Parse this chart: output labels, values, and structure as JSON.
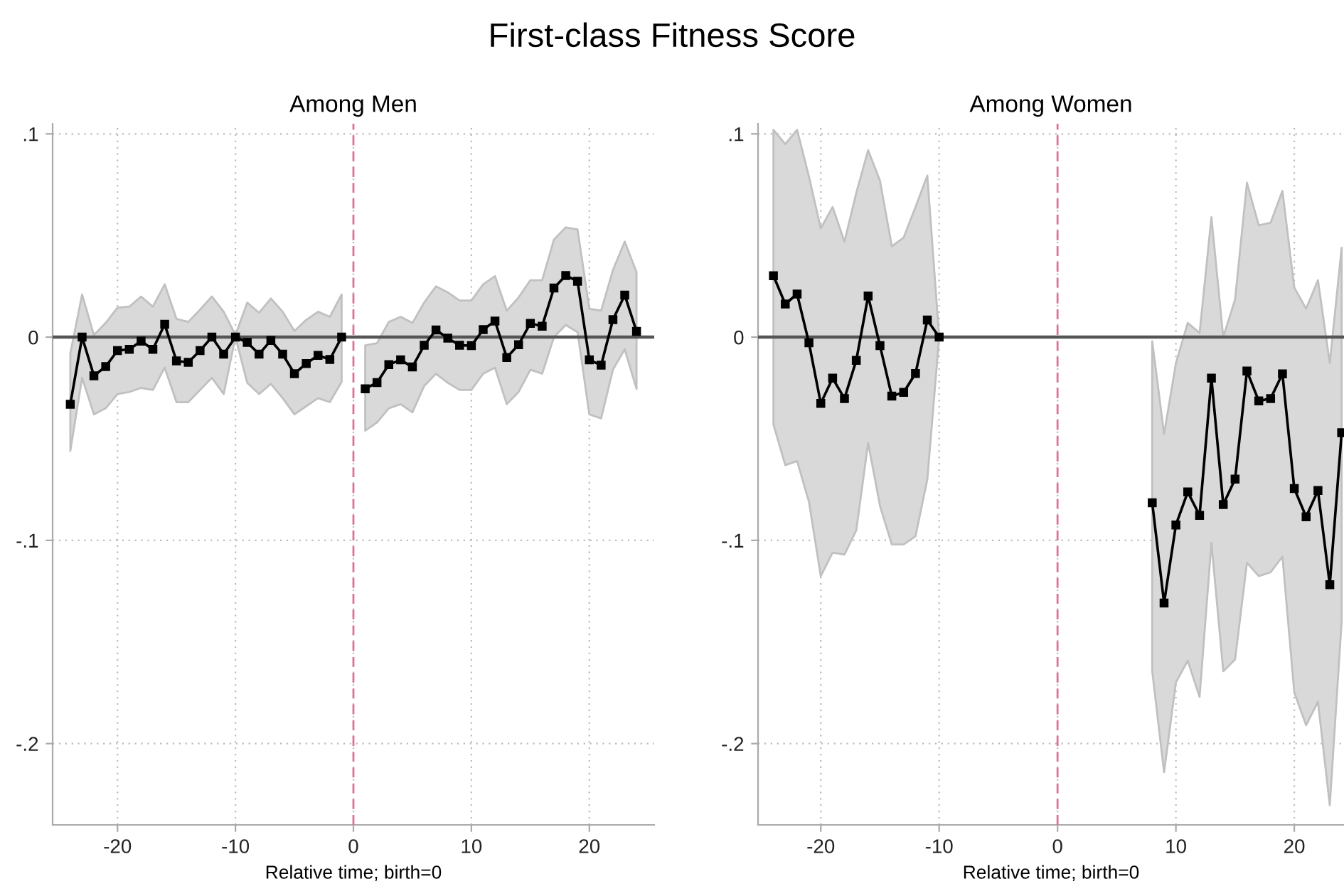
{
  "chart_data": [
    {
      "type": "line",
      "title": "First-class Fitness Score",
      "subtitle": "Among Men",
      "xlabel": "Relative time; birth=0",
      "x": [
        -24,
        -23,
        -22,
        -21,
        -20,
        -19,
        -18,
        -17,
        -16,
        -15,
        -14,
        -13,
        -12,
        -11,
        -10,
        -9,
        -8,
        -7,
        -6,
        -5,
        -4,
        -3,
        -2,
        -1,
        0,
        1,
        2,
        3,
        4,
        5,
        6,
        7,
        8,
        9,
        10,
        11,
        12,
        13,
        14,
        15,
        16,
        17,
        18,
        19,
        20,
        21,
        22,
        23,
        24
      ],
      "series": [
        {
          "color": "#000000",
          "values": [
            -0.033,
            0,
            -0.019,
            -0.0145,
            -0.0066,
            -0.006,
            -0.002,
            -0.006,
            0.0063,
            -0.0117,
            -0.0124,
            -0.0066,
            0,
            -0.0084,
            0,
            -0.0026,
            -0.0084,
            -0.0016,
            -0.0084,
            -0.018,
            -0.013,
            -0.009,
            -0.011,
            0,
            null,
            -0.0254,
            -0.0224,
            -0.0135,
            -0.0112,
            -0.0147,
            -0.004,
            0.0035,
            -0.0005,
            -0.004,
            -0.0042,
            0.0037,
            0.0079,
            -0.01,
            -0.0037,
            0.0068,
            0.0054,
            0.0242,
            0.0303,
            0.0275,
            -0.0112,
            -0.0138,
            0.0086,
            0.0207,
            0.0028
          ],
          "upper": [
            -0.008,
            0.021,
            0.001,
            0.007,
            0.0145,
            0.015,
            0.02,
            0.015,
            0.026,
            0.009,
            0.0075,
            0.0135,
            0.02,
            0.0125,
            0.001,
            0.017,
            0.012,
            0.019,
            0.0125,
            0.003,
            0.0085,
            0.0125,
            0.01,
            0.021,
            null,
            -0.004,
            -0.003,
            0.0075,
            0.01,
            0.007,
            0.017,
            0.025,
            0.022,
            0.018,
            0.018,
            0.026,
            0.03,
            0.013,
            0.0195,
            0.028,
            0.028,
            0.048,
            0.054,
            0.053,
            0.014,
            0.013,
            0.033,
            0.047,
            0.032
          ],
          "lower": [
            -0.056,
            -0.02,
            -0.038,
            -0.035,
            -0.028,
            -0.027,
            -0.025,
            -0.026,
            -0.015,
            -0.032,
            -0.032,
            -0.026,
            -0.02,
            -0.028,
            0,
            -0.0225,
            -0.028,
            -0.023,
            -0.03,
            -0.038,
            -0.034,
            -0.03,
            -0.032,
            -0.022,
            null,
            -0.046,
            -0.042,
            -0.035,
            -0.033,
            -0.037,
            -0.024,
            -0.018,
            -0.0225,
            -0.026,
            -0.026,
            -0.018,
            -0.015,
            -0.033,
            -0.027,
            -0.016,
            -0.018,
            0,
            0.006,
            0.0025,
            -0.038,
            -0.04,
            -0.016,
            -0.006,
            -0.0255
          ]
        }
      ],
      "xlim": [
        -25.5,
        25.5
      ],
      "ylim": [
        -0.24,
        0.105
      ],
      "xticks": [
        -20,
        -10,
        0,
        10,
        20
      ],
      "yticks": [
        {
          "value": 0.1,
          "label": ".1"
        },
        0,
        {
          "value": -0.1,
          "label": "-.1"
        },
        {
          "value": -0.2,
          "label": "-.2"
        }
      ],
      "grid": true,
      "marker": "square",
      "line_style": "solid",
      "ref_lines": [
        {
          "axis": "y",
          "value": 0,
          "color": "#555555",
          "line_style": "solid"
        },
        {
          "axis": "x",
          "value": 0,
          "color": "#e0709a",
          "line_style": "dashed"
        }
      ]
    },
    {
      "type": "line",
      "subtitle": "Among Women",
      "xlabel": "Relative time; birth=0",
      "x": [
        -24,
        -23,
        -22,
        -21,
        -20,
        -19,
        -18,
        -17,
        -16,
        -15,
        -14,
        -13,
        -12,
        -11,
        -10,
        -9,
        -8,
        -7,
        -6,
        -5,
        -4,
        -3,
        -2,
        -1,
        0,
        1,
        2,
        3,
        4,
        5,
        6,
        7,
        8,
        9,
        10,
        11,
        12,
        13,
        14,
        15,
        16,
        17,
        18,
        19,
        20,
        21,
        22,
        23,
        24
      ],
      "series": [
        {
          "color": "#000000",
          "values": [
            0.0302,
            0.0163,
            0.0212,
            -0.0028,
            -0.0326,
            -0.0202,
            -0.0302,
            -0.0114,
            0.0202,
            -0.0042,
            -0.029,
            -0.0272,
            -0.0179,
            0.0084,
            0,
            null,
            null,
            null,
            null,
            null,
            null,
            null,
            null,
            null,
            null,
            null,
            null,
            null,
            null,
            null,
            null,
            null,
            -0.0815,
            -0.1308,
            -0.0924,
            -0.0762,
            -0.0877,
            -0.0202,
            -0.0824,
            -0.0699,
            -0.0167,
            -0.0314,
            -0.0302,
            -0.0181,
            -0.0745,
            -0.0884,
            -0.0755,
            -0.1218,
            -0.047
          ],
          "upper": [
            0.102,
            0.095,
            0.102,
            0.079,
            0.0535,
            0.064,
            0.047,
            0.071,
            0.092,
            0.077,
            0.0447,
            0.049,
            0.064,
            0.0795,
            0,
            null,
            null,
            null,
            null,
            null,
            null,
            null,
            null,
            null,
            null,
            null,
            null,
            null,
            null,
            null,
            null,
            null,
            -0.002,
            -0.0477,
            -0.0128,
            0.007,
            0.002,
            0.059,
            0,
            0.0186,
            0.076,
            0.055,
            0.0563,
            0.072,
            0.0244,
            0.014,
            0.028,
            -0.0128,
            0.044
          ],
          "lower": [
            -0.043,
            -0.063,
            -0.061,
            -0.081,
            -0.1176,
            -0.106,
            -0.107,
            -0.095,
            -0.052,
            -0.083,
            -0.102,
            -0.102,
            -0.098,
            -0.07,
            0,
            null,
            null,
            null,
            null,
            null,
            null,
            null,
            null,
            null,
            null,
            null,
            null,
            null,
            null,
            null,
            null,
            null,
            -0.1644,
            -0.2141,
            -0.1699,
            -0.1592,
            -0.177,
            -0.1012,
            -0.1644,
            -0.1586,
            -0.111,
            -0.1176,
            -0.1157,
            -0.108,
            -0.1748,
            -0.191,
            -0.1794,
            -0.2303,
            -0.14
          ]
        }
      ],
      "xlim": [
        -25.3,
        24.2
      ],
      "ylim": [
        -0.24,
        0.105
      ],
      "xticks": [
        -20,
        -10,
        0,
        10,
        20
      ],
      "yticks": [
        {
          "value": 0.1,
          "label": ".1"
        },
        0,
        {
          "value": -0.1,
          "label": "-.1"
        },
        {
          "value": -0.2,
          "label": "-.2"
        }
      ],
      "grid": true,
      "marker": "square",
      "line_style": "solid",
      "ref_lines": [
        {
          "axis": "y",
          "value": 0,
          "color": "#555555",
          "line_style": "solid"
        },
        {
          "axis": "x",
          "value": 0,
          "color": "#e0709a",
          "line_style": "dashed"
        }
      ]
    }
  ]
}
